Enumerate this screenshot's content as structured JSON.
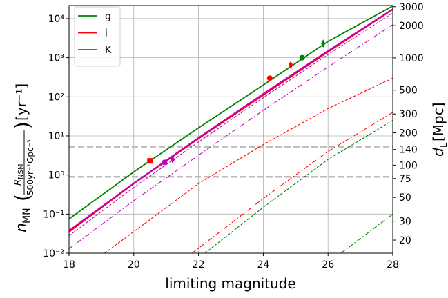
{
  "chart_data": {
    "type": "line",
    "xlabel": "limiting magnitude",
    "ylabel": {
      "symbol": "n",
      "sub": "MN",
      "open": "(",
      "num": "R",
      "num_sub": "NSM",
      "den": "500yr⁻¹Gpc⁻³",
      "close": ")",
      "unit": "[yr⁻¹]"
    },
    "y2label": {
      "symbol": "d",
      "sub": "L",
      "unit": "[Mpc]"
    },
    "xlim": [
      18,
      28
    ],
    "xticks": [
      18,
      20,
      22,
      24,
      26,
      28
    ],
    "ylim": [
      0.01,
      21600
    ],
    "y_log": true,
    "yticks": [
      {
        "value": 0.01,
        "label": "10⁻²"
      },
      {
        "value": 0.1,
        "label": "10⁻¹"
      },
      {
        "value": 1,
        "label": "10⁰"
      },
      {
        "value": 10,
        "label": "10¹"
      },
      {
        "value": 100,
        "label": "10²"
      },
      {
        "value": 1000,
        "label": "10³"
      },
      {
        "value": 10000,
        "label": "10⁴"
      }
    ],
    "y2lim": [
      15.1,
      3080
    ],
    "y2_log": true,
    "y2ticks": [
      20,
      30,
      50,
      75,
      100,
      140,
      200,
      300,
      500,
      1000,
      2000,
      3000
    ],
    "grid": true,
    "legend": "upper left",
    "hlines": [
      {
        "value": 5.3,
        "color": "#bbbbbb"
      },
      {
        "value": 0.9,
        "color": "#bbbbbb"
      }
    ],
    "series": [
      {
        "name": "g",
        "color": "#008000",
        "style": "solid",
        "x": [
          18,
          20,
          22,
          24,
          26,
          28
        ],
        "values": [
          0.075,
          1.2,
          16,
          200,
          2600,
          21000
        ]
      },
      {
        "name": "i",
        "color": "#ff0000",
        "style": "solid",
        "x": [
          18,
          20,
          22,
          24,
          26,
          28
        ],
        "values": [
          0.035,
          0.6,
          8.5,
          110,
          1400,
          17000
        ]
      },
      {
        "name": "K",
        "color": "#bf00bf",
        "style": "solid",
        "x": [
          18,
          20,
          22,
          24,
          26,
          28
        ],
        "values": [
          0.038,
          0.62,
          9,
          120,
          1500,
          17500
        ]
      },
      {
        "color": "#bf00bf",
        "style": "dashed",
        "x": [
          18,
          20,
          22,
          24,
          26,
          28
        ],
        "values": [
          0.028,
          0.48,
          7,
          95,
          1200,
          14000
        ]
      },
      {
        "color": "#bf00bf",
        "style": "dashdot",
        "x": [
          18,
          20,
          22,
          24,
          26,
          28
        ],
        "values": [
          0.013,
          0.22,
          3.2,
          45,
          580,
          7000
        ]
      },
      {
        "color": "#ff0000",
        "style": "dashed",
        "x": [
          19.1,
          22,
          24,
          26,
          28
        ],
        "values": [
          0.01,
          0.6,
          6,
          50,
          300
        ]
      },
      {
        "color": "#ff0000",
        "style": "dashdot",
        "x": [
          21.8,
          24,
          26,
          28
        ],
        "values": [
          0.01,
          0.25,
          4,
          40
        ]
      },
      {
        "color": "#008000",
        "style": "dashed",
        "x": [
          22.2,
          24,
          26,
          28
        ],
        "values": [
          0.01,
          0.15,
          2.5,
          25
        ]
      },
      {
        "color": "#008000",
        "style": "dashdot",
        "x": [
          26.4,
          28
        ],
        "values": [
          0.01,
          0.1
        ]
      }
    ],
    "markers": [
      {
        "x": 20.5,
        "y": 2.3,
        "color": "#ff0000",
        "shape": "square"
      },
      {
        "x": 20.95,
        "y": 2.1,
        "color": "#bf00bf",
        "shape": "circle"
      },
      {
        "x": 21.2,
        "y": 2.5,
        "color": "#bf00bf",
        "shape": "diamond"
      },
      {
        "x": 24.2,
        "y": 300,
        "color": "#ff0000",
        "shape": "circle"
      },
      {
        "x": 24.85,
        "y": 650,
        "color": "#ff0000",
        "shape": "diamond"
      },
      {
        "x": 25.2,
        "y": 1000,
        "color": "#008000",
        "shape": "circle"
      },
      {
        "x": 25.85,
        "y": 2300,
        "color": "#008000",
        "shape": "diamond"
      }
    ]
  }
}
